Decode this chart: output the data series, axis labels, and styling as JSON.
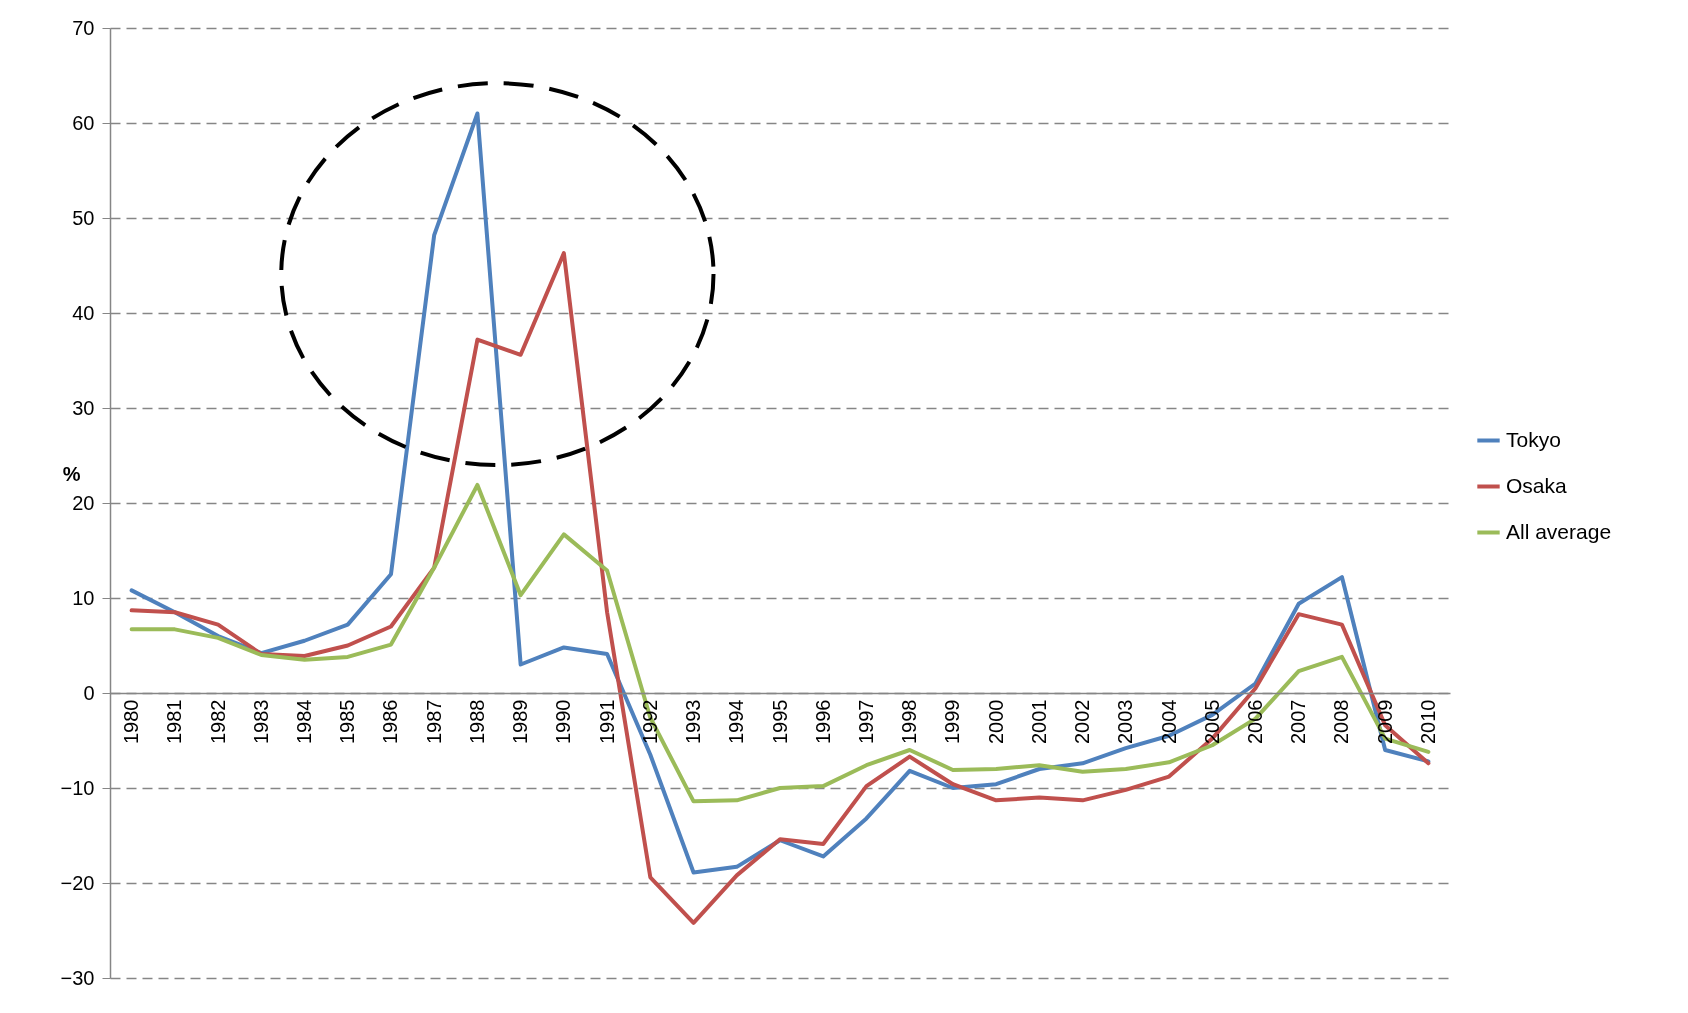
{
  "chart_data": {
    "type": "line",
    "ylabel": "%",
    "categories": [
      "1980",
      "1981",
      "1982",
      "1983",
      "1984",
      "1985",
      "1986",
      "1987",
      "1988",
      "1989",
      "1990",
      "1991",
      "1992",
      "1993",
      "1994",
      "1995",
      "1996",
      "1997",
      "1998",
      "1999",
      "2000",
      "2001",
      "2002",
      "2003",
      "2004",
      "2005",
      "2006",
      "2007",
      "2008",
      "2009",
      "2010"
    ],
    "series": [
      {
        "name": "Tokyo",
        "color": "#4f81bd",
        "values": [
          10.8,
          8.5,
          6,
          4.2,
          5.5,
          7.2,
          12.5,
          48.2,
          61,
          3,
          4.8,
          4.1,
          -6.5,
          -18.9,
          -18.3,
          -15.5,
          -17.2,
          -13.2,
          -8.2,
          -10,
          -9.6,
          -8,
          -7.4,
          -5.8,
          -4.5,
          -2.3,
          1,
          9.4,
          12.2,
          -6,
          -7.2
        ]
      },
      {
        "name": "Osaka",
        "color": "#c0504d",
        "values": [
          8.7,
          8.5,
          7.2,
          4.1,
          3.9,
          5,
          7,
          13.2,
          37.2,
          35.6,
          46.3,
          8.5,
          -19.4,
          -24.2,
          -19.2,
          -15.4,
          -15.9,
          -9.8,
          -6.7,
          -9.6,
          -11.3,
          -11,
          -11.3,
          -10.2,
          -8.8,
          -4.8,
          0.5,
          8.3,
          7.2,
          -3.4,
          -7.4
        ]
      },
      {
        "name": "All average",
        "color": "#9bbb59",
        "values": [
          6.7,
          6.7,
          5.8,
          4,
          3.5,
          3.8,
          5.1,
          13.2,
          21.9,
          10.3,
          16.7,
          12.9,
          -2.6,
          -11.4,
          -11.3,
          -10,
          -9.8,
          -7.6,
          -6,
          -8.1,
          -8,
          -7.6,
          -8.3,
          -8,
          -7.3,
          -5.5,
          -2.7,
          2.3,
          3.8,
          -4.8,
          -6.2
        ]
      }
    ],
    "ylim": [
      -30,
      70
    ],
    "yticks": [
      -30,
      -20,
      -10,
      0,
      10,
      20,
      30,
      40,
      50,
      60,
      70
    ],
    "grid": "y",
    "legend": "right",
    "marker": "none",
    "line_style": "solid"
  }
}
